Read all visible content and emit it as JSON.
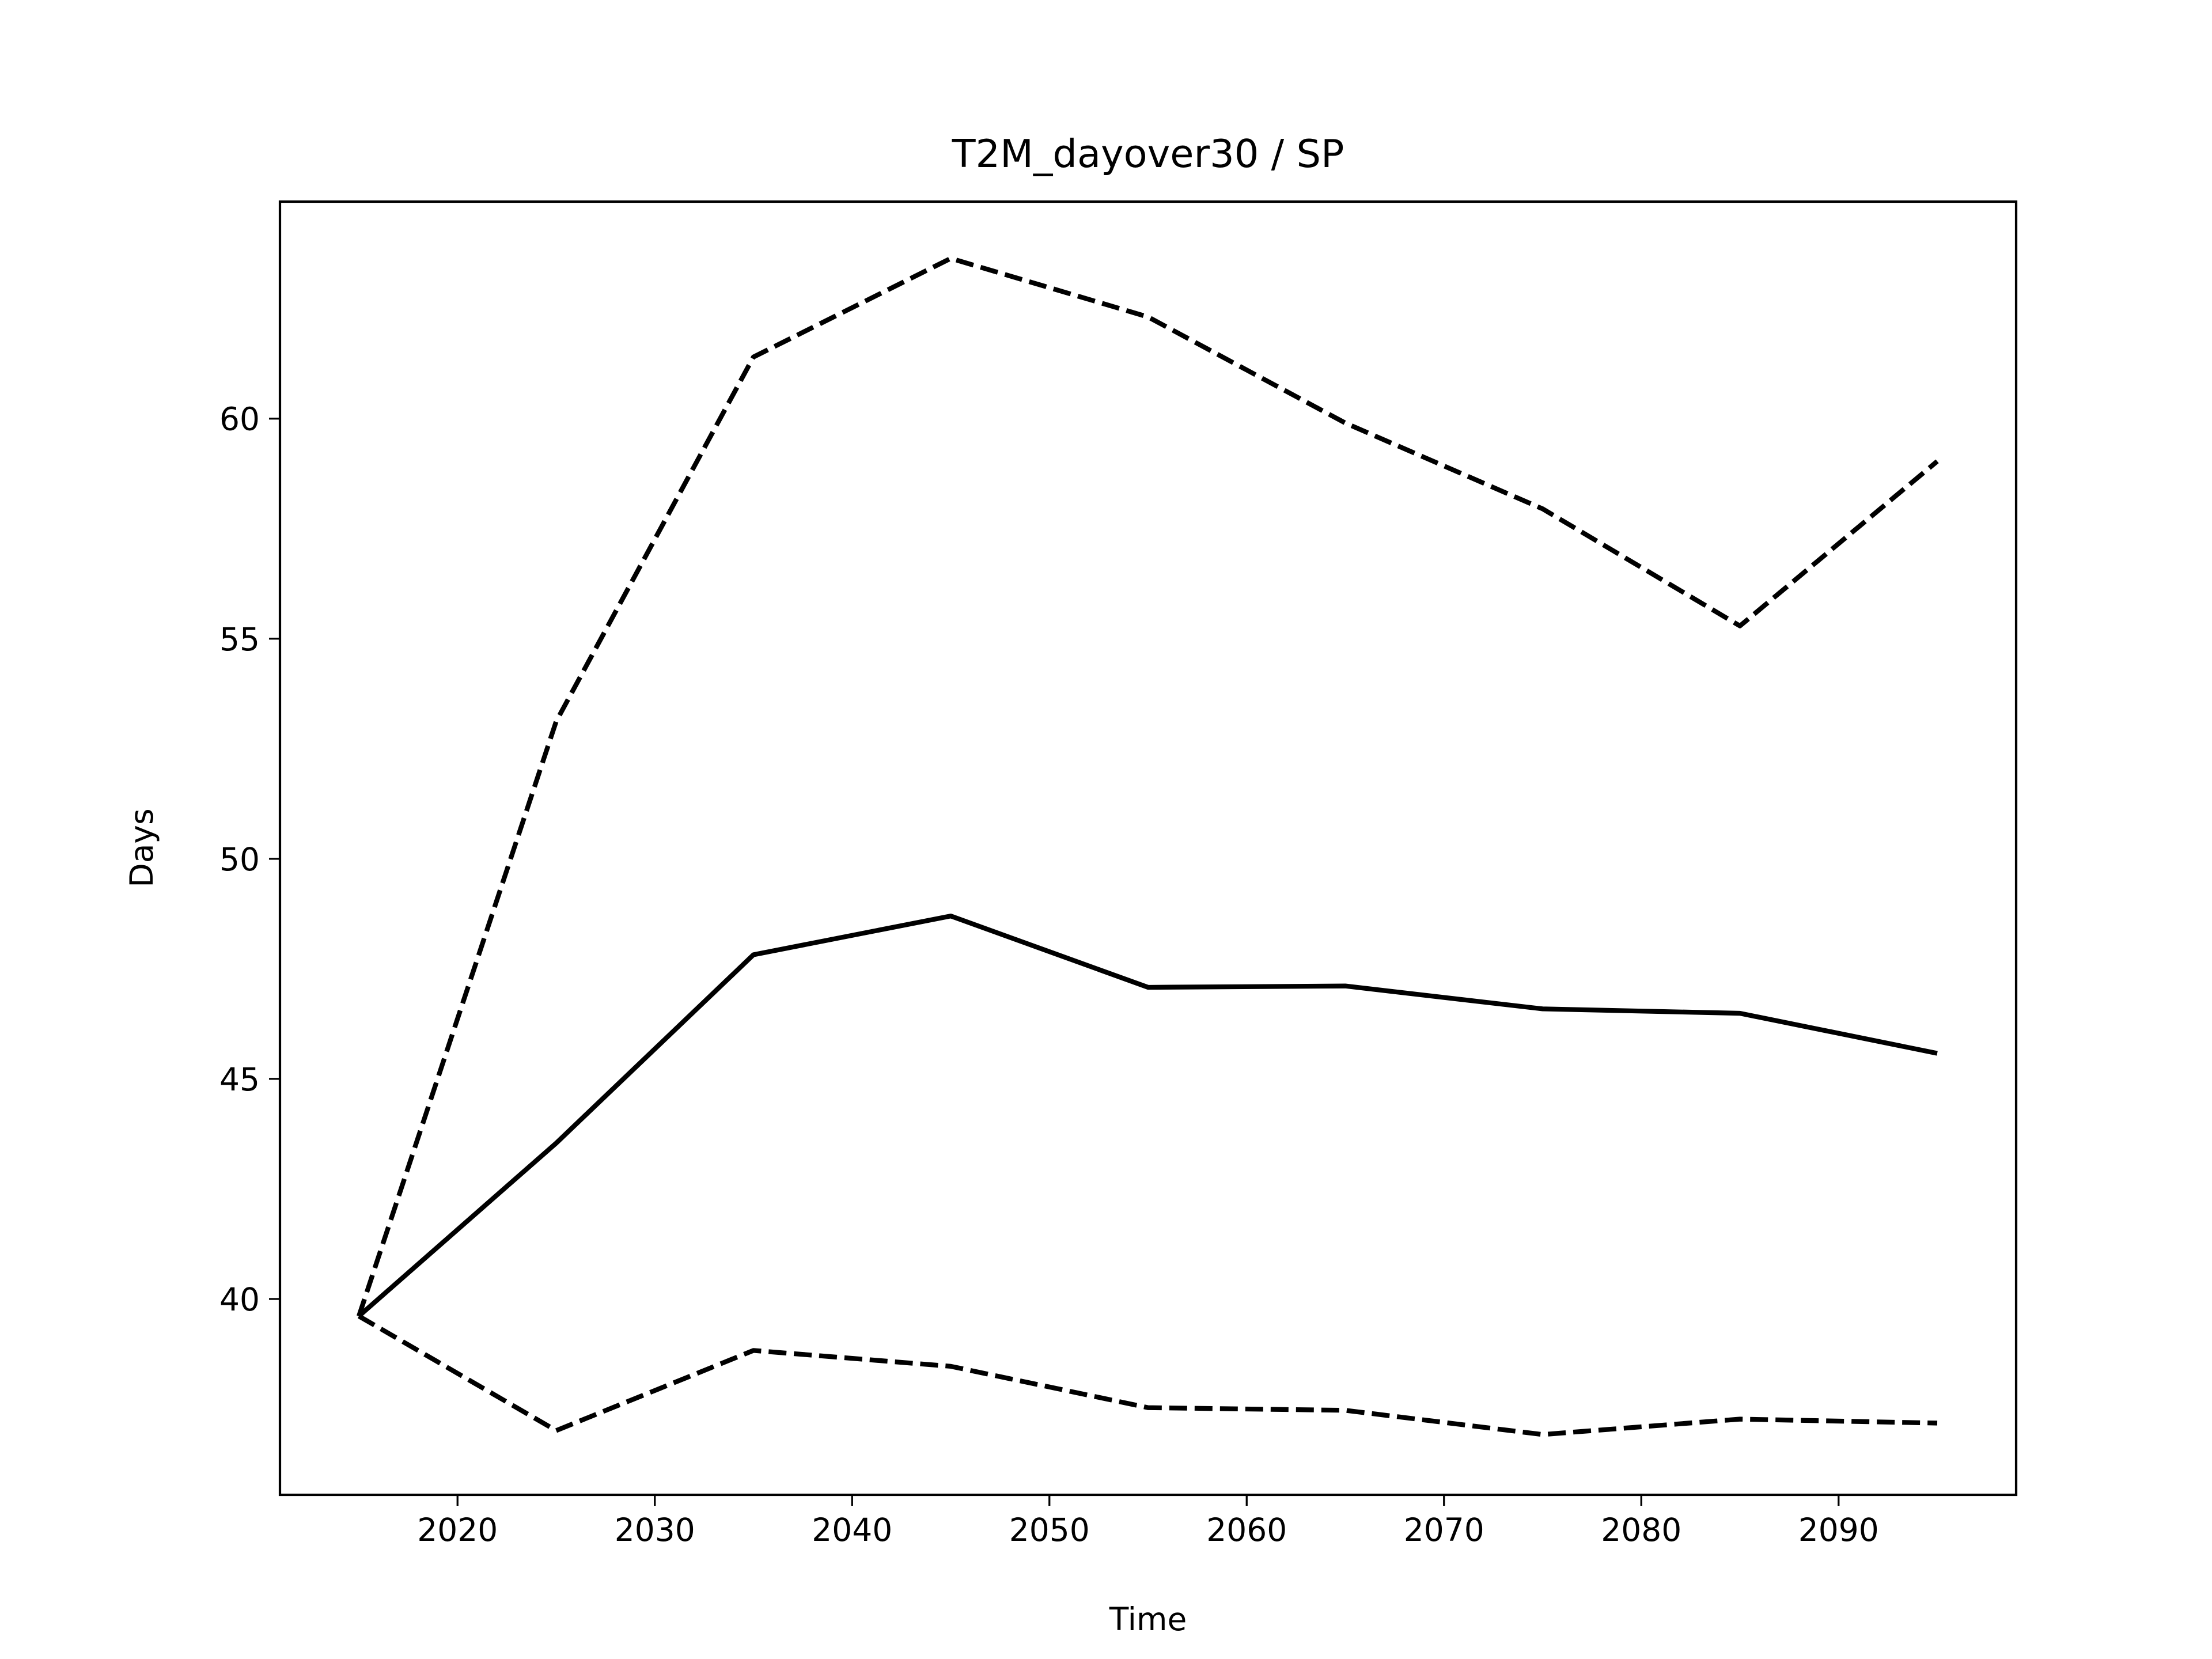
{
  "chart_data": {
    "type": "line",
    "title": "T2M_dayover30 / SP",
    "x_label": "Time",
    "y_label": "Days",
    "x": [
      2015,
      2025,
      2035,
      2045,
      2055,
      2065,
      2075,
      2085,
      2095
    ],
    "series": [
      {
        "color": "#000000",
        "dash": false,
        "values": [
          39.61,
          43.54,
          47.82,
          48.7,
          47.08,
          47.11,
          46.59,
          46.49,
          45.58
        ]
      },
      {
        "color": "#000000",
        "dash": true,
        "values": [
          39.61,
          53.12,
          61.4,
          63.64,
          62.31,
          59.9,
          57.95,
          55.29,
          59.03
        ]
      },
      {
        "color": "#000000",
        "dash": true,
        "values": [
          39.61,
          37.01,
          38.83,
          38.47,
          37.53,
          37.47,
          36.92,
          37.27,
          37.18
        ]
      }
    ],
    "xlim": [
      2011,
      2099
    ],
    "xticks": [
      2020,
      2030,
      2040,
      2050,
      2060,
      2070,
      2080,
      2090
    ],
    "ylim": [
      35.55,
      64.93
    ],
    "yticks": [
      40,
      45,
      50,
      55,
      60
    ],
    "grid": false
  }
}
